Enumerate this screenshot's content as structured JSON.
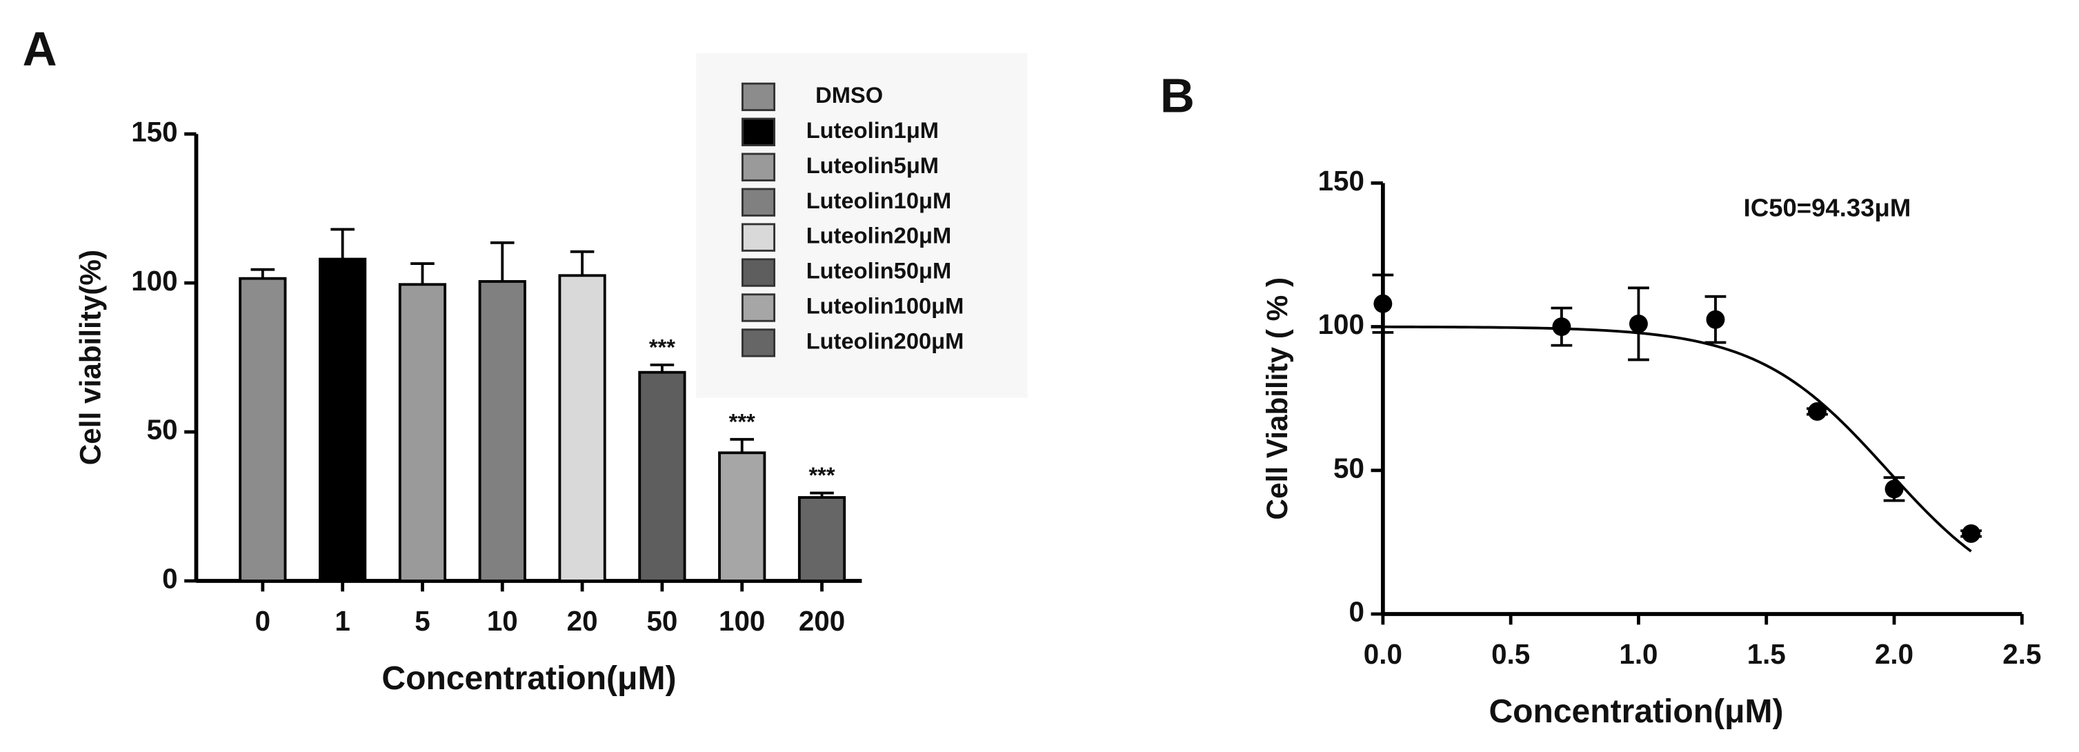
{
  "chart_data": [
    {
      "type": "bar",
      "panel": "A",
      "ylabel": "Cell viability(%)",
      "xlabel": "Concentration(μM)",
      "categories": [
        "0",
        "1",
        "5",
        "10",
        "20",
        "50",
        "100",
        "200"
      ],
      "values": [
        101.5,
        108,
        99.5,
        100.5,
        102.5,
        70,
        43,
        28
      ],
      "errors": [
        3,
        10,
        7,
        13,
        8,
        2.5,
        4.5,
        1.5
      ],
      "annotations": [
        null,
        null,
        null,
        null,
        null,
        "***",
        "***",
        "***"
      ],
      "legend": [
        "DMSO",
        "Luteolin1μM",
        "Luteolin5μM",
        "Luteolin10μM",
        "Luteolin20μM",
        "Luteolin50μM",
        "Luteolin100μM",
        "Luteolin200μM"
      ],
      "colors": [
        "#8c8c8c",
        "#000000",
        "#9a9a9a",
        "#808080",
        "#d9d9d9",
        "#5e5e5e",
        "#a6a6a6",
        "#666666"
      ],
      "ylim": [
        0,
        150
      ],
      "yticks": [
        0,
        50,
        100,
        150
      ]
    },
    {
      "type": "scatter",
      "panel": "B",
      "ylabel": "Cell Viability ( % )",
      "xlabel": "Concentration(μM)",
      "annotation": "IC50=94.33μM",
      "x": [
        0,
        0.699,
        1,
        1.301,
        1.699,
        2,
        2.301
      ],
      "values": [
        108,
        100,
        101,
        102.5,
        70.5,
        43.5,
        28
      ],
      "errors": [
        10,
        6.5,
        12.5,
        8,
        1,
        4,
        1
      ],
      "color": "#000000",
      "fit": {
        "top": 100,
        "bottom": 0,
        "log_ic50": 1.975,
        "hill": 1.7,
        "x_range": [
          0,
          2.301
        ]
      },
      "xlim": [
        0,
        2.5
      ],
      "xticks": [
        {
          "value": 0,
          "label": "0.0"
        },
        {
          "value": 0.5,
          "label": "0.5"
        },
        {
          "value": 1,
          "label": "1.0"
        },
        {
          "value": 1.5,
          "label": "1.5"
        },
        {
          "value": 2,
          "label": "2.0"
        },
        {
          "value": 2.5,
          "label": "2.5"
        }
      ],
      "ylim": [
        0,
        150
      ],
      "yticks": [
        0,
        50,
        100,
        150
      ]
    }
  ]
}
